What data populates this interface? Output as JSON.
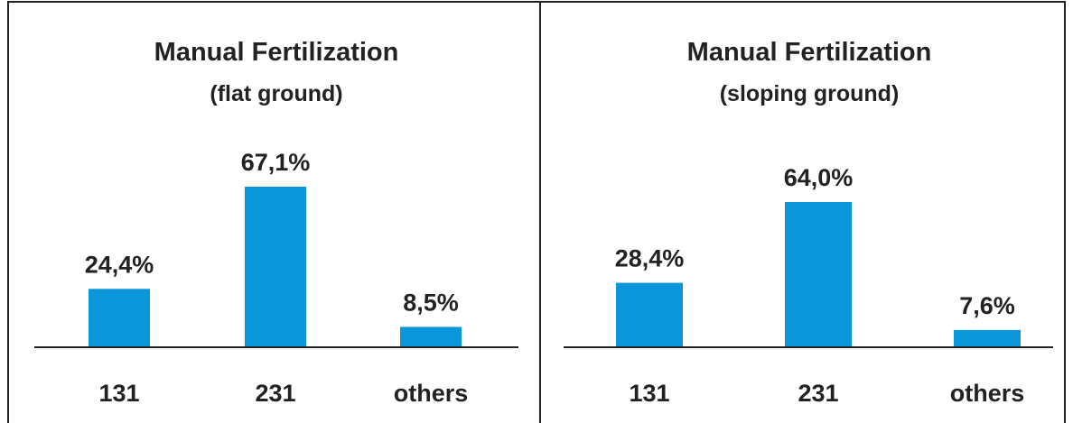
{
  "colors": {
    "bar": "#0a96d8",
    "frame": "#222222",
    "text": "#222222",
    "background": "#ffffff"
  },
  "chart_data": [
    {
      "type": "bar",
      "title": "Manual Fertilization",
      "subtitle": "(flat ground)",
      "categories": [
        "131",
        "231",
        "others"
      ],
      "values": [
        24.4,
        67.1,
        8.5
      ],
      "data_labels": [
        "24,4%",
        "67,1%",
        "8,5%"
      ],
      "ylim": [
        0,
        67.1
      ],
      "grid": false,
      "legend": "none"
    },
    {
      "type": "bar",
      "title": "Manual Fertilization",
      "subtitle": "(sloping ground)",
      "categories": [
        "131",
        "231",
        "others"
      ],
      "values": [
        28.4,
        64.0,
        7.6
      ],
      "data_labels": [
        "28,4%",
        "64,0%",
        "7,6%"
      ],
      "ylim": [
        0,
        64.0
      ],
      "grid": false,
      "legend": "none"
    }
  ]
}
